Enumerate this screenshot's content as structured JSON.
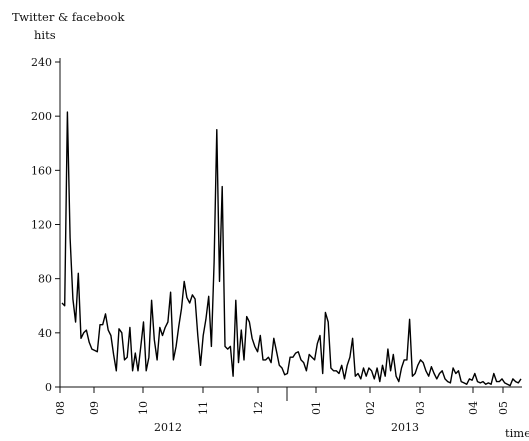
{
  "chart_data": {
    "type": "line",
    "title": "",
    "ylabel_lines": [
      "Twitter & facebook",
      "hits"
    ],
    "xlabel": "time",
    "ylim": [
      0,
      240
    ],
    "yticks": [
      0,
      40,
      80,
      120,
      160,
      200,
      240
    ],
    "month_ticks": [
      "08",
      "09",
      "10",
      "11",
      "12",
      "01",
      "02",
      "03",
      "04",
      "05"
    ],
    "year_labels": [
      "2012",
      "2013"
    ],
    "series": [
      {
        "values": [
          62,
          60,
          203,
          110,
          65,
          48,
          84,
          36,
          40,
          42,
          33,
          28,
          27,
          26,
          46,
          46,
          54,
          42,
          38,
          24,
          12,
          43,
          40,
          20,
          22,
          44,
          12,
          25,
          12,
          30,
          48,
          12,
          22,
          64,
          35,
          20,
          44,
          38,
          44,
          48,
          70,
          20,
          30,
          45,
          58,
          78,
          66,
          62,
          68,
          65,
          38,
          16,
          38,
          50,
          67,
          30,
          92,
          190,
          78,
          148,
          30,
          28,
          30,
          8,
          64,
          18,
          42,
          20,
          52,
          48,
          36,
          30,
          26,
          38,
          20,
          20,
          22,
          18,
          36,
          26,
          16,
          14,
          9,
          10,
          22,
          22,
          25,
          26,
          20,
          18,
          12,
          24,
          22,
          20,
          32,
          38,
          10,
          55,
          48,
          14,
          12,
          12,
          10,
          16,
          6,
          16,
          22,
          36,
          8,
          10,
          6,
          14,
          8,
          14,
          12,
          6,
          14,
          4,
          16,
          8,
          28,
          12,
          24,
          8,
          4,
          14,
          20,
          20,
          50,
          8,
          10,
          16,
          20,
          18,
          12,
          8,
          15,
          10,
          6,
          10,
          12,
          6,
          4,
          3,
          14,
          10,
          12,
          4,
          3,
          2,
          6,
          5,
          10,
          4,
          3,
          4,
          2,
          3,
          2,
          10,
          4,
          4,
          6,
          3,
          2,
          1,
          6,
          4,
          3,
          6
        ]
      }
    ]
  }
}
